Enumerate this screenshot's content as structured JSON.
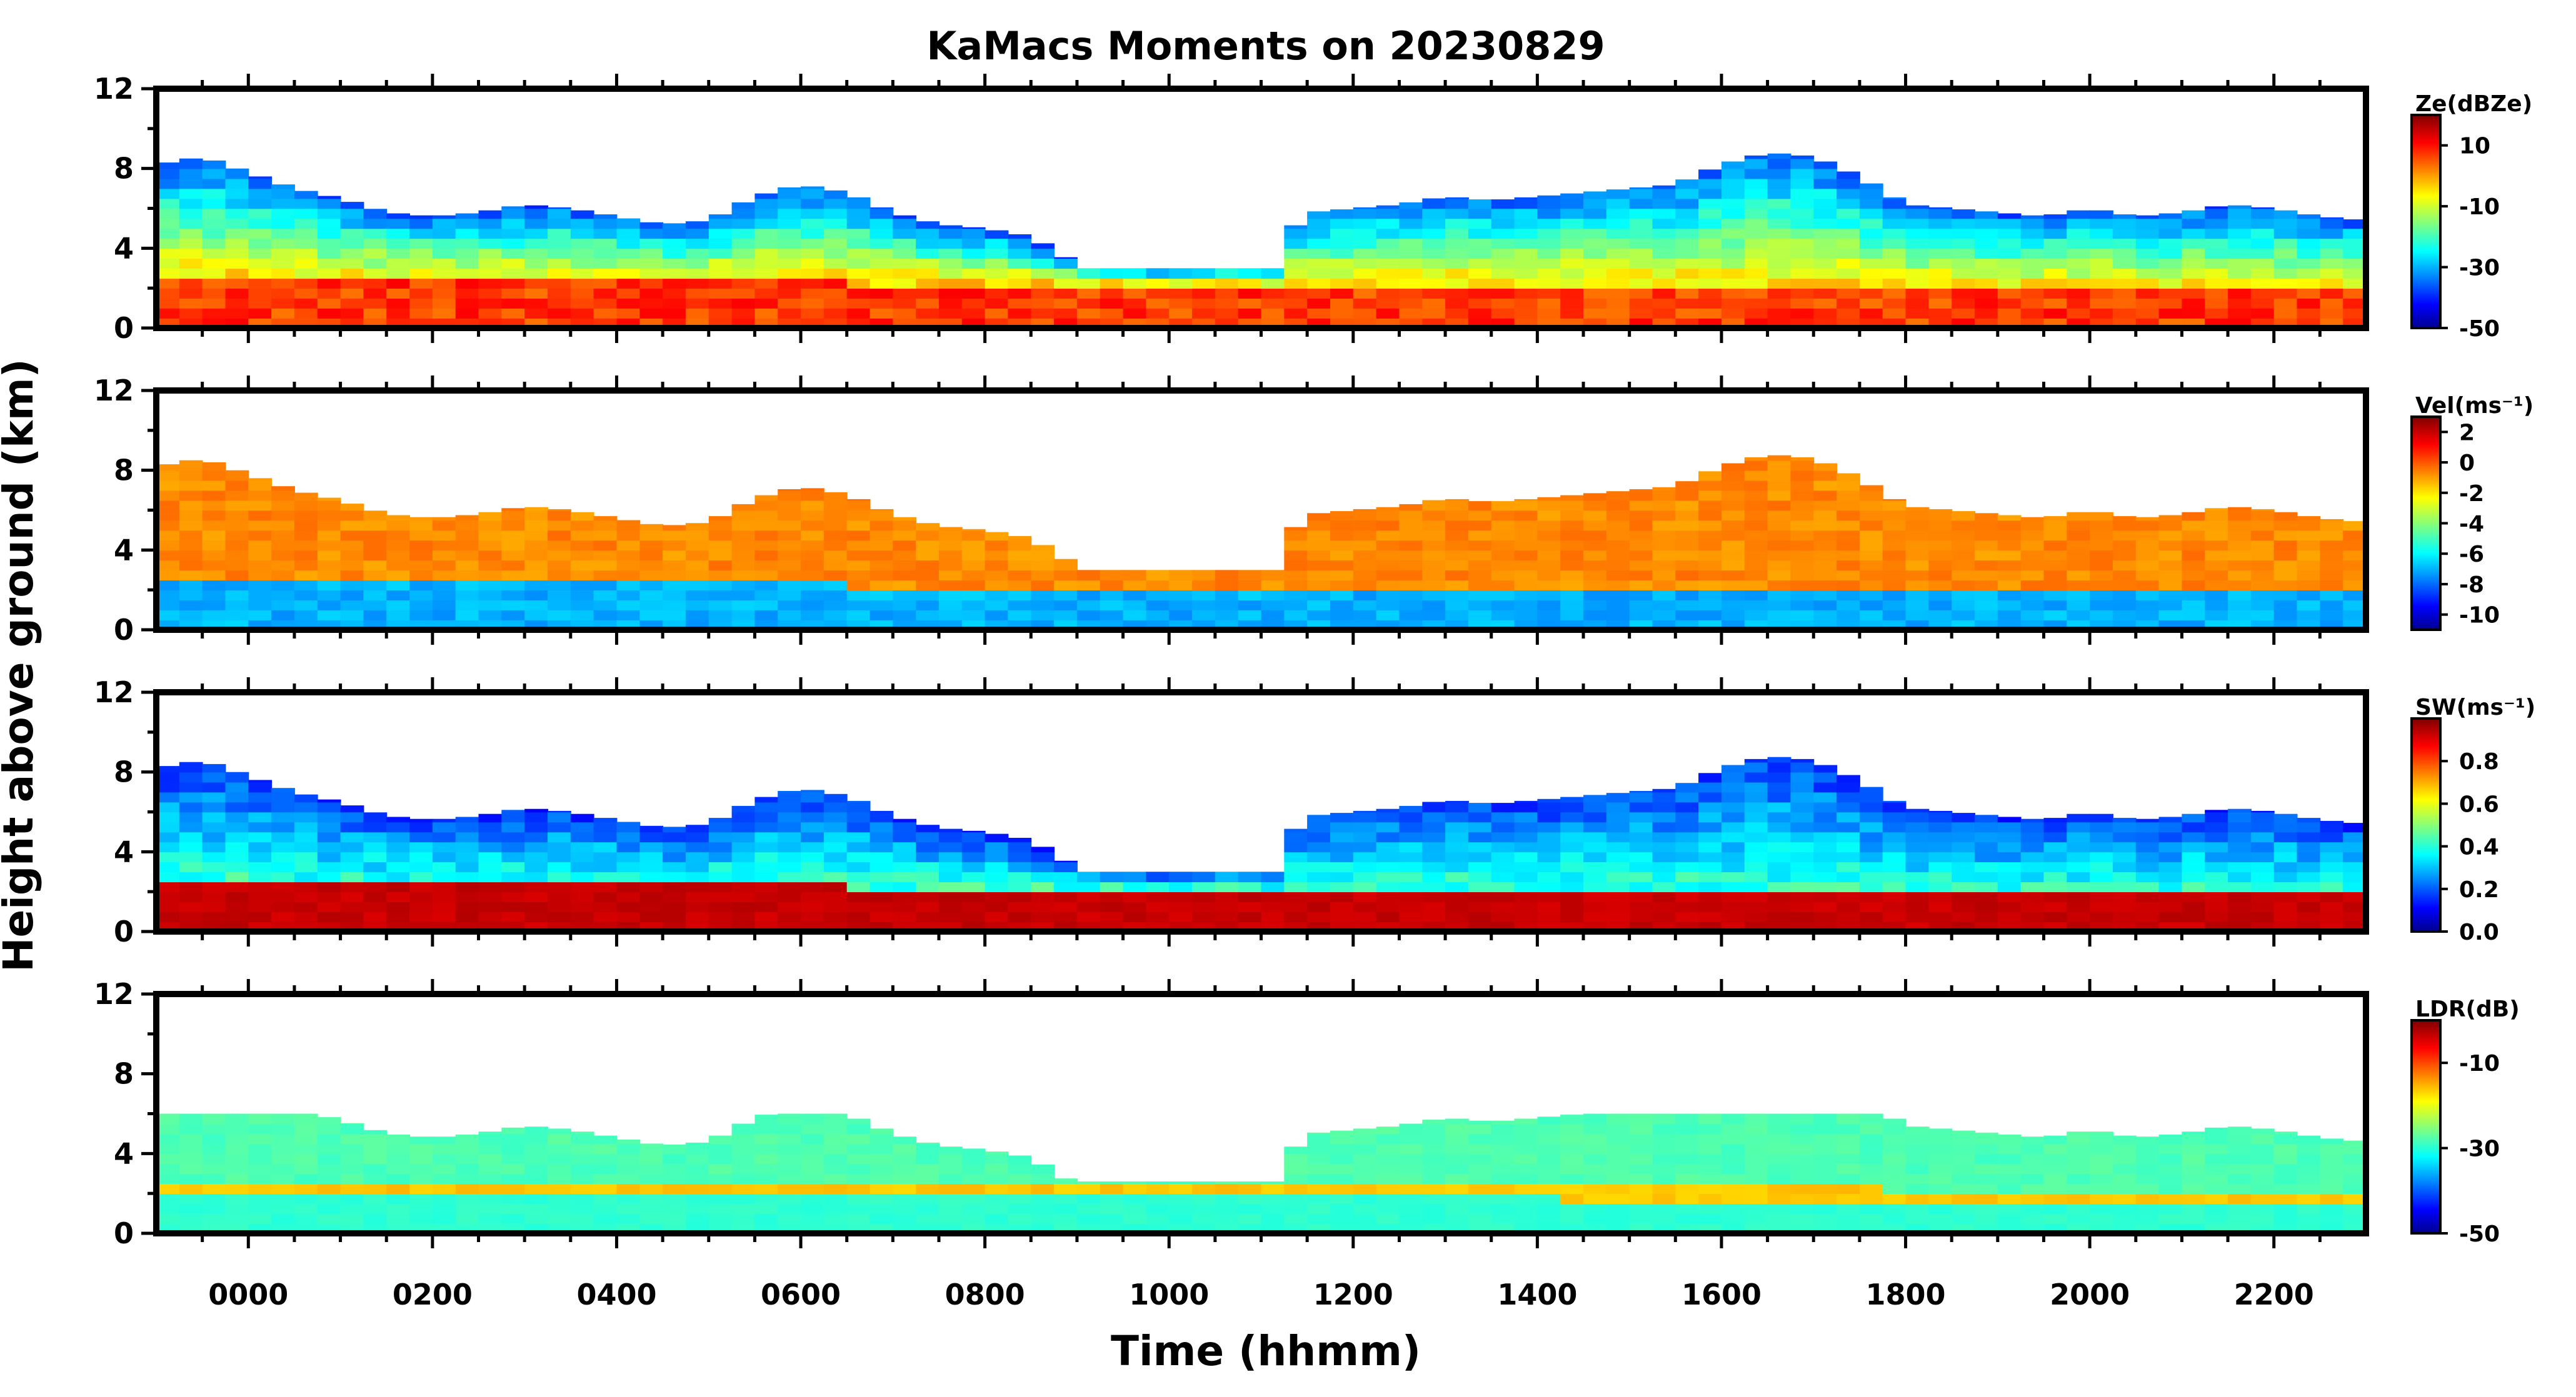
{
  "chart_data": {
    "type": "heatmap",
    "title": "KaMacs Moments on 20230829",
    "xlabel": "Time (hhmm)",
    "ylabel": "Height above ground (km)",
    "x_tick_labels": [
      "0000",
      "0200",
      "0400",
      "0600",
      "0800",
      "1000",
      "1200",
      "1400",
      "1600",
      "1800",
      "2000",
      "2200"
    ],
    "x_tick_hours": [
      0,
      2,
      4,
      6,
      8,
      10,
      12,
      14,
      16,
      18,
      20,
      22
    ],
    "xlim_hours": [
      -1.0,
      23.0
    ],
    "y_tick_labels": [
      "0",
      "4",
      "8",
      "12"
    ],
    "ylim_km": [
      0,
      12
    ],
    "colormap": "jet",
    "panels": [
      {
        "name": "reflectivity",
        "colorbar_label": "Ze(dBZe)",
        "colorbar_ticks": [
          "10",
          "-10",
          "-30",
          "-50"
        ],
        "colorbar_tick_values": [
          10,
          -10,
          -30,
          -50
        ],
        "range": [
          -50,
          20
        ]
      },
      {
        "name": "velocity",
        "colorbar_label": "Vel(ms⁻¹)",
        "colorbar_ticks": [
          "2",
          "0",
          "-2",
          "-4",
          "-6",
          "-8",
          "-10"
        ],
        "colorbar_tick_values": [
          2,
          0,
          -2,
          -4,
          -6,
          -8,
          -10
        ],
        "range": [
          -11,
          3
        ]
      },
      {
        "name": "spectrum-width",
        "colorbar_label": "SW(ms⁻¹)",
        "colorbar_ticks": [
          "0.8",
          "0.6",
          "0.4",
          "0.2",
          "0.0"
        ],
        "colorbar_tick_values": [
          0.8,
          0.6,
          0.4,
          0.2,
          0.0
        ],
        "range": [
          0,
          1
        ]
      },
      {
        "name": "ldr",
        "colorbar_label": "LDR(dB)",
        "colorbar_ticks": [
          "-10",
          "-30",
          "-50"
        ],
        "colorbar_tick_values": [
          -10,
          -30,
          -50
        ],
        "range": [
          -50,
          0
        ]
      }
    ],
    "cloud_top_km": [
      [
        -1.0,
        8.2
      ],
      [
        -0.5,
        8.6
      ],
      [
        0.0,
        7.8
      ],
      [
        0.5,
        7.0
      ],
      [
        1.0,
        6.5
      ],
      [
        1.5,
        5.8
      ],
      [
        2.0,
        5.6
      ],
      [
        2.5,
        5.8
      ],
      [
        3.0,
        6.2
      ],
      [
        3.5,
        6.0
      ],
      [
        4.0,
        5.6
      ],
      [
        4.5,
        5.2
      ],
      [
        5.0,
        5.4
      ],
      [
        5.5,
        6.6
      ],
      [
        6.0,
        7.2
      ],
      [
        6.5,
        6.8
      ],
      [
        7.0,
        5.8
      ],
      [
        7.5,
        5.2
      ],
      [
        8.0,
        5.0
      ],
      [
        8.5,
        4.6
      ],
      [
        9.0,
        3.2
      ],
      [
        9.5,
        3.0
      ],
      [
        10.0,
        3.0
      ],
      [
        10.5,
        3.0
      ],
      [
        11.0,
        3.2
      ],
      [
        11.5,
        5.8
      ],
      [
        12.0,
        6.0
      ],
      [
        12.5,
        6.2
      ],
      [
        13.0,
        6.6
      ],
      [
        13.5,
        6.4
      ],
      [
        14.0,
        6.6
      ],
      [
        14.5,
        6.8
      ],
      [
        15.0,
        7.0
      ],
      [
        15.5,
        7.2
      ],
      [
        16.0,
        8.2
      ],
      [
        16.5,
        8.8
      ],
      [
        17.0,
        8.6
      ],
      [
        17.5,
        7.6
      ],
      [
        18.0,
        6.2
      ],
      [
        18.5,
        6.0
      ],
      [
        19.0,
        5.8
      ],
      [
        19.5,
        5.6
      ],
      [
        20.0,
        6.0
      ],
      [
        20.5,
        5.6
      ],
      [
        21.0,
        5.8
      ],
      [
        21.5,
        6.2
      ],
      [
        22.0,
        6.0
      ],
      [
        22.5,
        5.6
      ],
      [
        23.0,
        5.4
      ]
    ],
    "melting_layer_km": [
      [
        -1.0,
        2.4
      ],
      [
        9.0,
        2.2
      ],
      [
        23.0,
        1.8
      ]
    ]
  }
}
